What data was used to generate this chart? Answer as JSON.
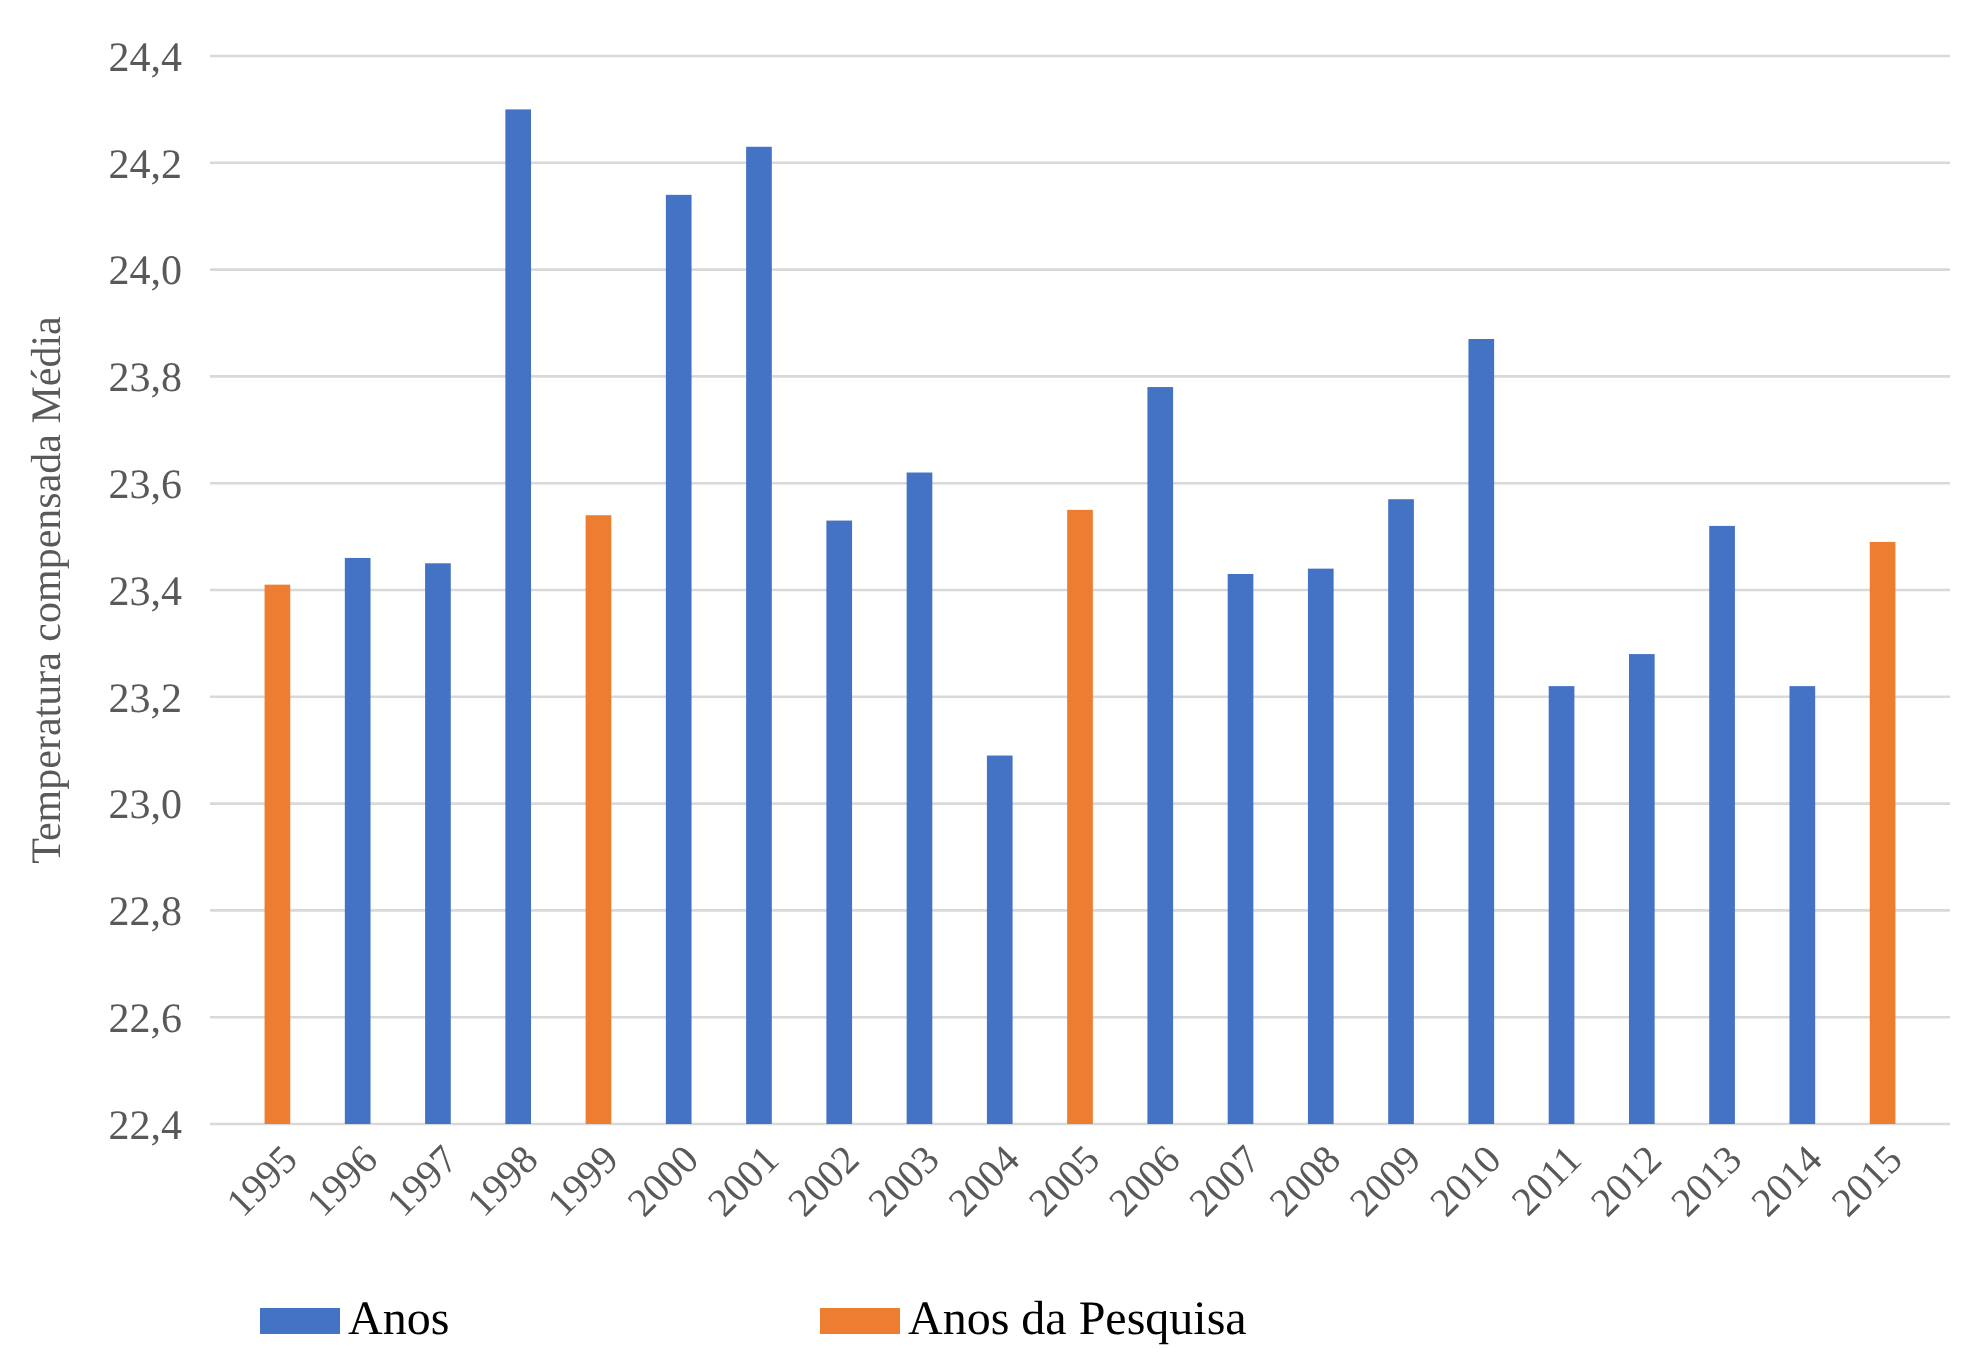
{
  "chart_data": {
    "type": "bar",
    "ylabel": "Temperatura compensada Média",
    "categories": [
      "1995",
      "1996",
      "1997",
      "1998",
      "1999",
      "2000",
      "2001",
      "2002",
      "2003",
      "2004",
      "2005",
      "2006",
      "2007",
      "2008",
      "2009",
      "2010",
      "2011",
      "2012",
      "2013",
      "2014",
      "2015"
    ],
    "series": [
      {
        "name": "Anos",
        "color": "#4472c4",
        "values": [
          null,
          23.46,
          23.45,
          24.3,
          null,
          24.14,
          24.23,
          23.53,
          23.62,
          23.09,
          null,
          23.78,
          23.43,
          23.44,
          23.57,
          23.87,
          23.22,
          23.28,
          23.52,
          23.22,
          null
        ]
      },
      {
        "name": "Anos da Pesquisa",
        "color": "#ed7d31",
        "values": [
          23.41,
          null,
          null,
          null,
          23.54,
          null,
          null,
          null,
          null,
          null,
          23.55,
          null,
          null,
          null,
          null,
          null,
          null,
          null,
          null,
          null,
          23.49
        ]
      }
    ],
    "ylim": [
      22.4,
      24.4
    ],
    "yticks": [
      {
        "value": 22.4,
        "label": "22,4"
      },
      {
        "value": 22.6,
        "label": "22,6"
      },
      {
        "value": 22.8,
        "label": "22,8"
      },
      {
        "value": 23.0,
        "label": "23,0"
      },
      {
        "value": 23.2,
        "label": "23,2"
      },
      {
        "value": 23.4,
        "label": "23,4"
      },
      {
        "value": 23.6,
        "label": "23,6"
      },
      {
        "value": 23.8,
        "label": "23,8"
      },
      {
        "value": 24.0,
        "label": "24,0"
      },
      {
        "value": 24.2,
        "label": "24,2"
      },
      {
        "value": 24.4,
        "label": "24,4"
      }
    ],
    "grid": "y",
    "legend": "bottom"
  }
}
